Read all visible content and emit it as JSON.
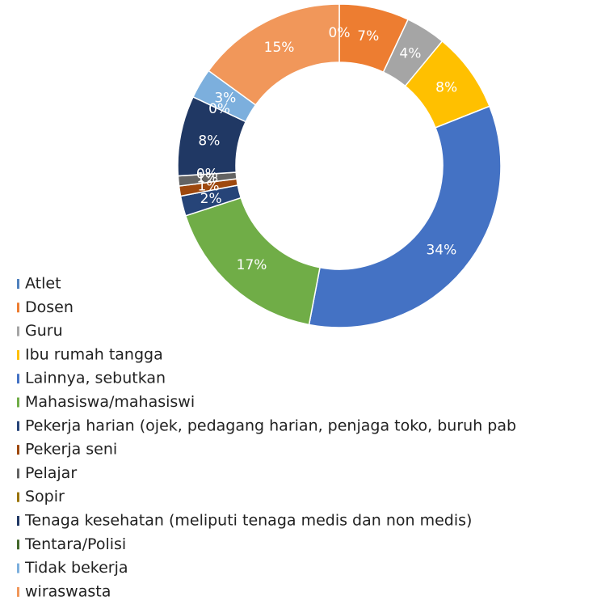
{
  "chart_data": {
    "type": "donut",
    "categories": [
      "Atlet",
      "Dosen",
      "Guru",
      "Ibu rumah tangga",
      "Lainnya, sebutkan",
      "Mahasiswa/mahasiswi",
      "Pekerja harian (ojek, pedagang harian, penjaga toko, buruh pab",
      "Pekerja seni",
      "Pelajar",
      "Sopir",
      "Tenaga kesehatan (meliputi tenaga medis dan non medis)",
      "Tentara/Polisi",
      "Tidak bekerja",
      "wiraswasta"
    ],
    "values": [
      0,
      7,
      4,
      8,
      34,
      17,
      2,
      1,
      1,
      0,
      8,
      0,
      3,
      15
    ],
    "value_labels": [
      "0%",
      "7%",
      "4%",
      "8%",
      "34%",
      "17%",
      "2%",
      "1%",
      "1%",
      "0%",
      "8%",
      "0%",
      "3%",
      "15%"
    ],
    "colors": [
      "#4f81bd",
      "#ed7d31",
      "#a5a5a5",
      "#ffc000",
      "#4472c4",
      "#70ad47",
      "#264478",
      "#9e480e",
      "#636363",
      "#997300",
      "#203864",
      "#43682b",
      "#7cafdd",
      "#f1975a"
    ],
    "legend": "bottom-left"
  }
}
